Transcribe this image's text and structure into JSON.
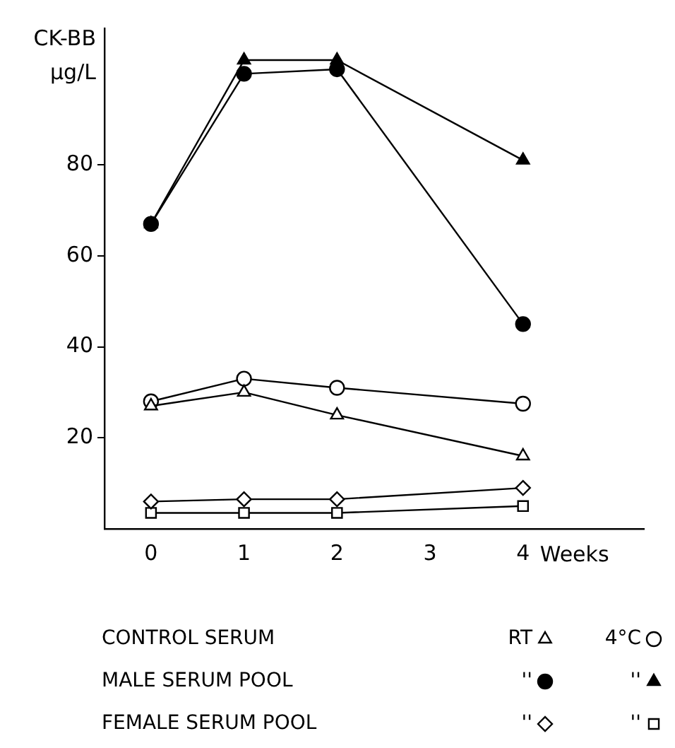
{
  "chart_data": {
    "type": "line",
    "xlabel": "Weeks",
    "ylabel": "CK-BB\nµg/L",
    "x": [
      0,
      1,
      2,
      4
    ],
    "xlim": [
      -0.5,
      5.3
    ],
    "xticks": [
      0,
      1,
      2,
      3,
      4
    ],
    "ylim": [
      0,
      110
    ],
    "yticks": [
      20,
      40,
      60,
      80
    ],
    "grid": false,
    "legend": "bottom",
    "line_style": "solid",
    "annotations": [
      "CONTROL SERUM",
      "MALE SERUM POOL",
      "FEMALE SERUM POOL"
    ],
    "series": [
      {
        "name": "RT",
        "color": "#000000",
        "colors": [
          "#ffffff",
          "#ffffff",
          "#ffffff",
          "#ffffff"
        ],
        "marker": "triangle",
        "values": [
          27,
          30,
          25,
          16
        ]
      },
      {
        "name": "4°C",
        "color": "#000000",
        "colors": [
          "#ffffff",
          "#ffffff",
          "#ffffff",
          "#ffffff"
        ],
        "marker": "circle",
        "values": [
          28,
          33,
          31,
          27.5
        ]
      },
      {
        "name": "''",
        "color": "#000000",
        "colors": [
          "#000000",
          "#000000",
          "#000000",
          "#000000"
        ],
        "marker": "circle",
        "values": [
          67,
          100,
          101,
          45
        ]
      },
      {
        "name": "''",
        "color": "#000000",
        "colors": [
          "#000000",
          "#000000",
          "#000000",
          "#000000"
        ],
        "marker": "triangle",
        "values": [
          67,
          103,
          103,
          81
        ]
      },
      {
        "name": "''",
        "color": "#000000",
        "colors": [
          "#ffffff",
          "#ffffff",
          "#ffffff",
          "#ffffff"
        ],
        "marker": "diamond",
        "values": [
          6,
          6.5,
          6.5,
          9
        ]
      },
      {
        "name": "''",
        "color": "#000000",
        "colors": [
          "#ffffff",
          "#ffffff",
          "#ffffff",
          "#ffffff"
        ],
        "marker": "square",
        "values": [
          3.5,
          3.5,
          3.5,
          5
        ]
      }
    ]
  }
}
